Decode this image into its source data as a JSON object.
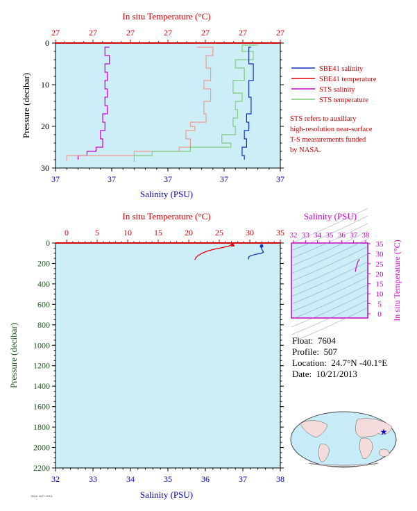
{
  "colors": {
    "plot_bg": "#cdeef7",
    "temp_axis": "#d00000",
    "sal_axis": "#0000b0",
    "pressure_axis": "#1a5a1a",
    "ts_axis": "#cc00cc",
    "sbe_salinity": "#1030c0",
    "sbe_temperature": "#e00000",
    "sts_salinity": "#cc00cc",
    "sts_temperature": "#7ccf7c",
    "sbe_temperature_upper": "#f19a8e"
  },
  "chart_data": [
    {
      "id": "upper",
      "type": "line",
      "top_axis_title": "In situ Temperature (°C)",
      "top_ticks": [
        "27",
        "27",
        "27",
        "27",
        "27",
        "27",
        "27"
      ],
      "bottom_axis_title": "Salinity (PSU)",
      "bottom_ticks": [
        "37",
        "37",
        "37",
        "37",
        "37"
      ],
      "y_axis_title": "Pressure (decibar)",
      "y_ticks": [
        0,
        10,
        20,
        30
      ],
      "ylim": [
        30,
        0
      ],
      "legend": [
        "SBE41 salinity",
        "SBE41 temperature",
        "STS salinity",
        "STS temperature"
      ],
      "legend_position": "right",
      "series": [
        {
          "name": "STS salinity",
          "x": [
            0.24,
            0.22,
            0.24,
            0.22,
            0.23,
            0.22,
            0.23,
            0.22,
            0.23,
            0.21,
            0.22,
            0.2,
            0.21,
            0.18,
            0.14,
            0.1
          ],
          "y": [
            1,
            3,
            5,
            7,
            9,
            11,
            13,
            15,
            17,
            19,
            21,
            23,
            25,
            26,
            27,
            28
          ]
        },
        {
          "name": "SBE41 temperature",
          "x": [
            0.63,
            0.7,
            0.67,
            0.69,
            0.66,
            0.69,
            0.66,
            0.67,
            0.6,
            0.62,
            0.58,
            0.6,
            0.55,
            0.35,
            0.05
          ],
          "y": [
            1,
            3,
            6,
            9,
            11,
            14,
            17,
            19,
            20,
            21,
            23,
            25,
            26,
            27,
            28.3
          ]
        },
        {
          "name": "STS temperature",
          "x": [
            0.9,
            0.83,
            0.88,
            0.8,
            0.84,
            0.79,
            0.83,
            0.8,
            0.81,
            0.79,
            0.8,
            0.74,
            0.78,
            0.6,
            0.43,
            0.35
          ],
          "y": [
            0.5,
            2,
            4,
            6,
            9,
            12,
            14,
            16,
            18,
            20,
            22,
            24,
            25,
            26,
            27,
            28.5
          ]
        },
        {
          "name": "SBE41 salinity",
          "x": [
            0.87,
            0.86,
            0.88,
            0.86,
            0.87,
            0.85,
            0.86,
            0.84,
            0.85,
            0.83,
            0.84
          ],
          "y": [
            1,
            5,
            9,
            13,
            17,
            19,
            21,
            23,
            25,
            27,
            28
          ]
        }
      ]
    },
    {
      "id": "lower",
      "type": "line",
      "top_axis_title": "In situ Temperature (°C)",
      "top_ticks": [
        "0",
        "5",
        "10",
        "15",
        "20",
        "25",
        "30",
        "35"
      ],
      "xlim_temperature": [
        0,
        35
      ],
      "bottom_axis_title": "Salinity (PSU)",
      "bottom_ticks": [
        "32",
        "33",
        "34",
        "35",
        "36",
        "37",
        "38"
      ],
      "xlim_salinity": [
        32,
        38
      ],
      "y_axis_title": "Pressure (decibar)",
      "y_ticks": [
        "0",
        "200",
        "400",
        "600",
        "800",
        "1000",
        "1200",
        "1400",
        "1600",
        "1800",
        "2000",
        "2200"
      ],
      "ylim": [
        2200,
        0
      ],
      "series": [
        {
          "name": "SBE41 temperature",
          "x": [
            27.2,
            26.6,
            25.5,
            24.2,
            23.0,
            22.2,
            21.6,
            21.2,
            21.0
          ],
          "y": [
            5,
            30,
            45,
            60,
            80,
            100,
            120,
            140,
            165
          ]
        },
        {
          "name": "SBE41 salinity",
          "x": [
            37.5,
            37.48,
            37.52,
            37.55,
            37.5,
            37.35,
            37.2,
            37.15,
            37.15
          ],
          "y": [
            30,
            40,
            70,
            90,
            100,
            110,
            125,
            140,
            160
          ]
        }
      ]
    },
    {
      "id": "ts_diagram",
      "type": "scatter",
      "top_axis_title": "Salinity (PSU)",
      "top_ticks": [
        "32",
        "33",
        "34",
        "35",
        "36",
        "37",
        "38"
      ],
      "right_axis_title": "In situ Temperature (°C)",
      "right_ticks": [
        "0",
        "5",
        "10",
        "15",
        "20",
        "25",
        "30",
        "35"
      ],
      "series": [
        {
          "name": "T-S",
          "x": [
            37.15,
            37.2,
            37.35,
            37.5
          ],
          "y": [
            21,
            23,
            26,
            27.2
          ]
        }
      ]
    }
  ],
  "note_lines": [
    "STS refers to auxiliary",
    "high-resolution near-surface",
    "T-S measurements funded",
    "by NASA."
  ],
  "info": {
    "float_label": "Float:",
    "float_value": "7604",
    "profile_label": "Profile:",
    "profile_value": "507",
    "location_label": "Location:",
    "location_value": "24.7°N  -40.1°E",
    "date_label": "Date:",
    "date_value": "10/21/2013"
  },
  "footer": "7604 / 507 / 2013"
}
